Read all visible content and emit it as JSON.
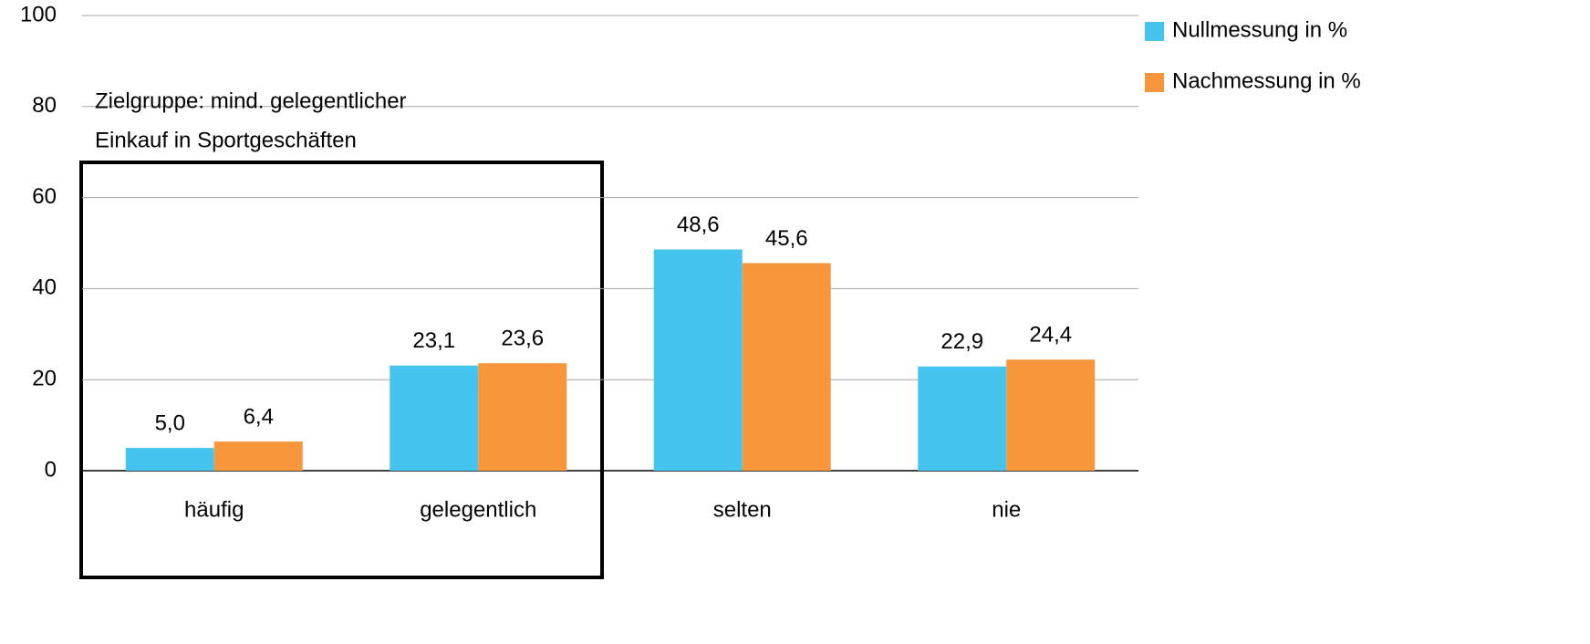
{
  "chart_data": {
    "type": "bar",
    "annotation": [
      "Zielgruppe: mind. gelegentlicher",
      "Einkauf in Sportgeschäften"
    ],
    "categories": [
      "häufig",
      "gelegentlich",
      "selten",
      "nie"
    ],
    "series": [
      {
        "name": "Nullmessung in %",
        "color": "#45c4f0",
        "values": [
          5.0,
          23.1,
          48.6,
          22.9
        ],
        "value_labels": [
          "5,0",
          "23,1",
          "48,6",
          "22,9"
        ]
      },
      {
        "name": "Nachmessung in %",
        "color": "#f7963a",
        "values": [
          6.4,
          23.6,
          45.6,
          24.4
        ],
        "value_labels": [
          "6,4",
          "23,6",
          "45,6",
          "24,4"
        ]
      }
    ],
    "ylim": [
      0,
      100
    ],
    "yticks": [
      0,
      20,
      40,
      60,
      80,
      100
    ],
    "grid": true,
    "legend": "top-right"
  }
}
